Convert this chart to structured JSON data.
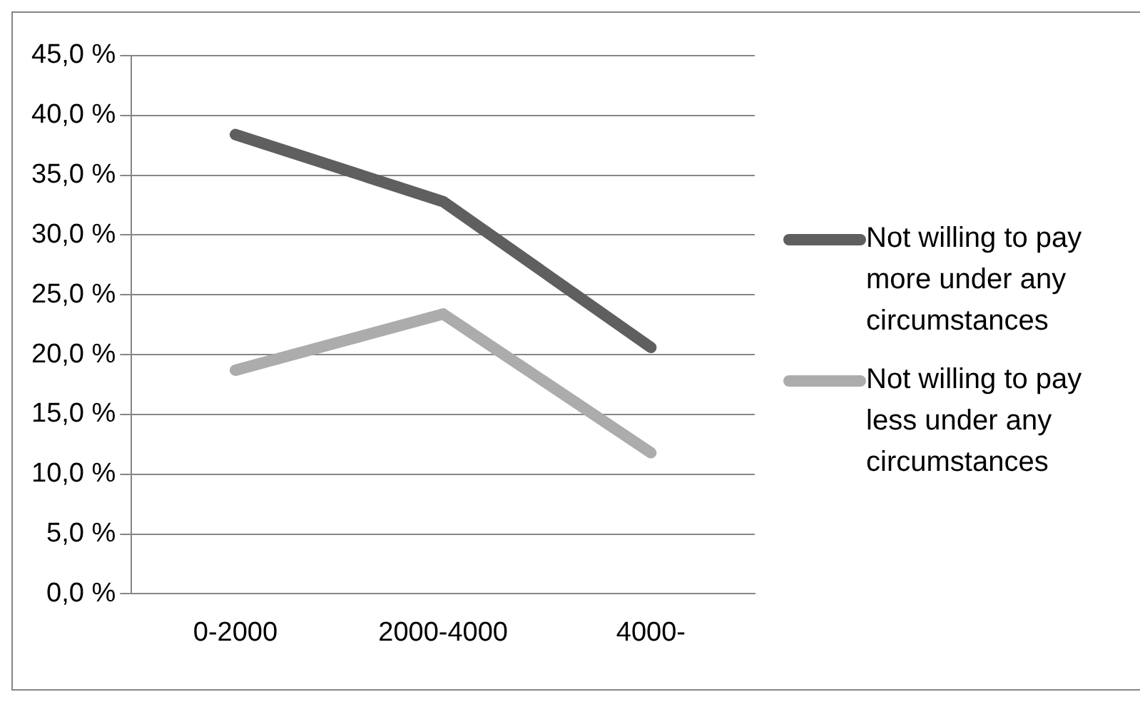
{
  "chart_data": {
    "type": "line",
    "categories": [
      "0-2000",
      "2000-4000",
      "4000-"
    ],
    "series": [
      {
        "name": "Not willing to pay more under any circumstances",
        "color": "#5f5f5f",
        "values": [
          38.4,
          32.8,
          20.6
        ]
      },
      {
        "name": "Not willing to pay less under any circumstances",
        "color": "#acacac",
        "values": [
          18.7,
          23.4,
          11.8
        ]
      }
    ],
    "ylim": [
      0,
      45
    ],
    "yticks": [
      {
        "value": 0,
        "label": "0,0 %"
      },
      {
        "value": 5,
        "label": "5,0 %"
      },
      {
        "value": 10,
        "label": "10,0 %"
      },
      {
        "value": 15,
        "label": "15,0 %"
      },
      {
        "value": 20,
        "label": "20,0 %"
      },
      {
        "value": 25,
        "label": "25,0 %"
      },
      {
        "value": 30,
        "label": "30,0 %"
      },
      {
        "value": 35,
        "label": "35,0 %"
      },
      {
        "value": 40,
        "label": "40,0 %"
      },
      {
        "value": 45,
        "label": "45,0 %"
      }
    ],
    "grid": "y",
    "legend": "right",
    "marker": "none",
    "line_style": "solid"
  }
}
